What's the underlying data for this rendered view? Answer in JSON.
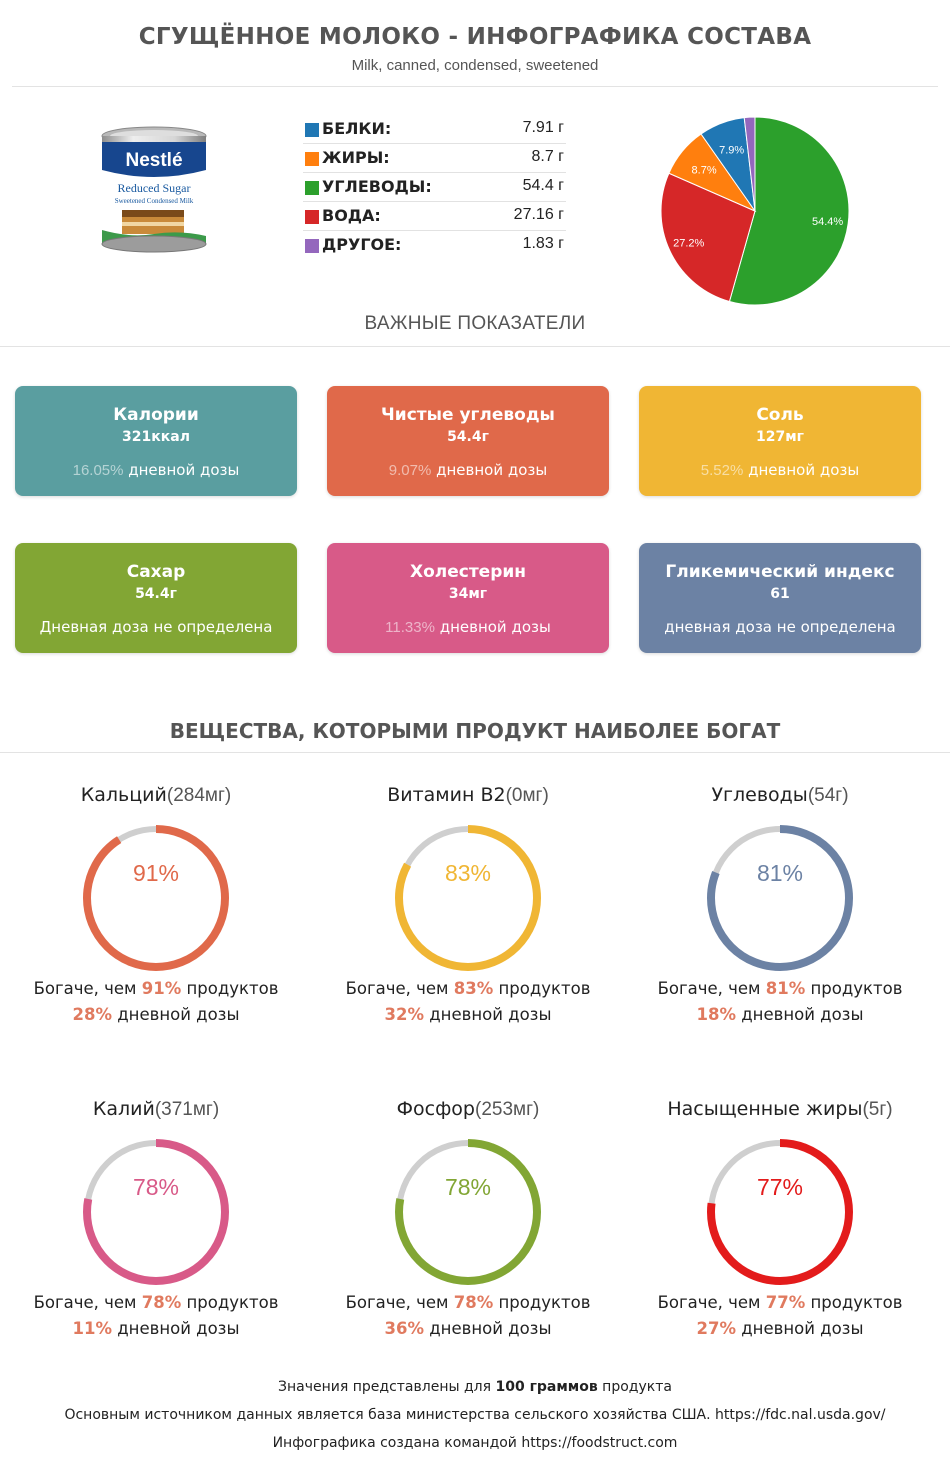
{
  "header": {
    "title": "СГУЩЁННОЕ МОЛОКО - ИНФОГРАФИКА СОСТАВА",
    "subtitle": "Milk, canned, condensed, sweetened"
  },
  "product_image": {
    "brand": "Nestlé",
    "label_line1": "Reduced Sugar",
    "label_line2": "Sweetened Condensed Milk"
  },
  "macros": [
    {
      "name": "БЕЛКИ:",
      "value": "7.91 г",
      "color": "#2077b4"
    },
    {
      "name": "ЖИРЫ:",
      "value": "8.7 г",
      "color": "#ff7f0e"
    },
    {
      "name": "УГЛЕВОДЫ:",
      "value": "54.4 г",
      "color": "#2ca02c"
    },
    {
      "name": "ВОДА:",
      "value": "27.16 г",
      "color": "#d62728"
    },
    {
      "name": "ДРУГОЕ:",
      "value": "1.83 г",
      "color": "#9467bd"
    }
  ],
  "chart_data": {
    "type": "pie",
    "slices": [
      {
        "label": "54.4%",
        "value": 54.4,
        "color": "#2ca02c"
      },
      {
        "label": "27.2%",
        "value": 27.2,
        "color": "#d62728"
      },
      {
        "label": "8.7%",
        "value": 8.7,
        "color": "#ff7f0e"
      },
      {
        "label": "7.9%",
        "value": 7.9,
        "color": "#2077b4"
      },
      {
        "label": "",
        "value": 1.83,
        "color": "#9467bd"
      }
    ]
  },
  "sections": {
    "key_indicators": "ВАЖНЫЕ ПОКАЗАТЕЛИ",
    "rich_in": "ВЕЩЕСТВА, КОТОРЫМИ ПРОДУКТ НАИБОЛЕЕ БОГАТ"
  },
  "cards": [
    {
      "title": "Калории",
      "value": "321ккал",
      "pct": "16.05%",
      "note": " дневной дозы",
      "color": "#5a9ea0"
    },
    {
      "title": "Чистые углеводы",
      "value": "54.4г",
      "pct": "9.07%",
      "note": " дневной дозы",
      "color": "#e0694a"
    },
    {
      "title": "Соль",
      "value": "127мг",
      "pct": "5.52%",
      "note": " дневной дозы",
      "color": "#f0b634"
    },
    {
      "title": "Сахар",
      "value": "54.4г",
      "pct": "",
      "note": "Дневная доза не определена",
      "color": "#82a634"
    },
    {
      "title": "Холестерин",
      "value": "34мг",
      "pct": "11.33%",
      "note": " дневной дозы",
      "color": "#d85a88"
    },
    {
      "title": "Гликемический индекс",
      "value": "61",
      "pct": "",
      "note": "дневная доза не определена",
      "color": "#6c82a4"
    }
  ],
  "nutrients": [
    {
      "name": "Кальций",
      "amount": "(284мг)",
      "percent": 91,
      "percent_label": "91%",
      "daily": "28%",
      "color": "#e0694a"
    },
    {
      "name": "Витамин B2",
      "amount": "(0мг)",
      "percent": 83,
      "percent_label": "83%",
      "daily": "32%",
      "color": "#f0b634"
    },
    {
      "name": "Углеводы",
      "amount": "(54г)",
      "percent": 81,
      "percent_label": "81%",
      "daily": "18%",
      "color": "#6c82a4"
    },
    {
      "name": "Калий",
      "amount": "(371мг)",
      "percent": 78,
      "percent_label": "78%",
      "daily": "11%",
      "color": "#d85a88"
    },
    {
      "name": "Фосфор",
      "amount": "(253мг)",
      "percent": 78,
      "percent_label": "78%",
      "daily": "36%",
      "color": "#82a634"
    },
    {
      "name": "Насыщенные жиры",
      "amount": "(5г)",
      "percent": 77,
      "percent_label": "77%",
      "daily": "27%",
      "color": "#e31b1b"
    }
  ],
  "phrases": {
    "richer_prefix": "Богаче, чем ",
    "richer_suffix": " продуктов",
    "daily_suffix": " дневной дозы"
  },
  "footer": {
    "line1_a": "Значения представлены для ",
    "line1_b": "100 граммов",
    "line1_c": " продукта",
    "line2": "Основным источником данных является база министерства сельского хозяйства США. https://fdc.nal.usda.gov/",
    "line3": "Инфографика создана командой https://foodstruct.com"
  }
}
